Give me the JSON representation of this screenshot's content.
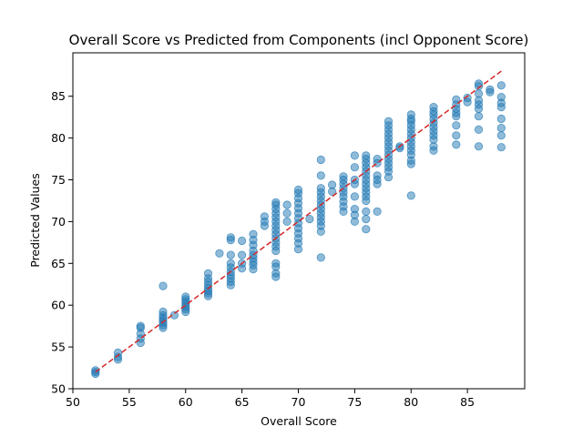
{
  "chart_data": {
    "type": "scatter",
    "title": "Overall Score vs Predicted from Components (incl Opponent Score)",
    "xlabel": "Overall Score",
    "ylabel": "Predicted Values",
    "xlim": [
      50,
      90
    ],
    "ylim": [
      50,
      90
    ],
    "xticks": [
      50,
      55,
      60,
      65,
      70,
      75,
      80,
      85
    ],
    "yticks": [
      50,
      55,
      60,
      65,
      70,
      75,
      80,
      85
    ],
    "grid": false,
    "point_color": "#1f77b4",
    "point_alpha": 0.5,
    "reference_line": {
      "style": "dashed",
      "color": "#d62728",
      "from": [
        52,
        52
      ],
      "to": [
        88,
        88
      ]
    },
    "points": [
      [
        52,
        51.8
      ],
      [
        52,
        52.0
      ],
      [
        52,
        52.2
      ],
      [
        54,
        53.5
      ],
      [
        54,
        53.8
      ],
      [
        54,
        54.3
      ],
      [
        56,
        55.5
      ],
      [
        56,
        56.0
      ],
      [
        56,
        56.6
      ],
      [
        56,
        57.3
      ],
      [
        56,
        57.5
      ],
      [
        58,
        57.3
      ],
      [
        58,
        57.6
      ],
      [
        58,
        57.9
      ],
      [
        58,
        58.2
      ],
      [
        58,
        58.5
      ],
      [
        58,
        58.8
      ],
      [
        58,
        59.2
      ],
      [
        58,
        62.3
      ],
      [
        59,
        58.8
      ],
      [
        60,
        59.2
      ],
      [
        60,
        59.5
      ],
      [
        60,
        59.8
      ],
      [
        60,
        60.1
      ],
      [
        60,
        60.4
      ],
      [
        60,
        60.7
      ],
      [
        60,
        61.0
      ],
      [
        62,
        61.1
      ],
      [
        62,
        61.4
      ],
      [
        62,
        61.7
      ],
      [
        62,
        62.0
      ],
      [
        62,
        62.4
      ],
      [
        62,
        62.8
      ],
      [
        62,
        63.2
      ],
      [
        62,
        63.8
      ],
      [
        63,
        66.2
      ],
      [
        64,
        62.4
      ],
      [
        64,
        62.8
      ],
      [
        64,
        63.2
      ],
      [
        64,
        63.6
      ],
      [
        64,
        64.0
      ],
      [
        64,
        64.5
      ],
      [
        64,
        65.0
      ],
      [
        64,
        66.0
      ],
      [
        64,
        67.8
      ],
      [
        64,
        68.1
      ],
      [
        65,
        64.4
      ],
      [
        65,
        65.0
      ],
      [
        65,
        66.0
      ],
      [
        65,
        67.7
      ],
      [
        66,
        64.3
      ],
      [
        66,
        64.8
      ],
      [
        66,
        65.2
      ],
      [
        66,
        65.6
      ],
      [
        66,
        66.0
      ],
      [
        66,
        66.5
      ],
      [
        66,
        67.2
      ],
      [
        66,
        67.8
      ],
      [
        66,
        68.5
      ],
      [
        67,
        69.5
      ],
      [
        67,
        70.0
      ],
      [
        67,
        70.6
      ],
      [
        68,
        63.4
      ],
      [
        68,
        63.8
      ],
      [
        68,
        64.6
      ],
      [
        68,
        65.0
      ],
      [
        68,
        66.5
      ],
      [
        68,
        67.0
      ],
      [
        68,
        67.5
      ],
      [
        68,
        68.0
      ],
      [
        68,
        68.5
      ],
      [
        68,
        69.0
      ],
      [
        68,
        69.5
      ],
      [
        68,
        70.0
      ],
      [
        68,
        70.5
      ],
      [
        68,
        71.0
      ],
      [
        68,
        71.5
      ],
      [
        68,
        72.0
      ],
      [
        68,
        72.3
      ],
      [
        69,
        70.0
      ],
      [
        69,
        71.0
      ],
      [
        69,
        72.0
      ],
      [
        70,
        66.7
      ],
      [
        70,
        67.4
      ],
      [
        70,
        68.0
      ],
      [
        70,
        68.6
      ],
      [
        70,
        69.2
      ],
      [
        70,
        69.8
      ],
      [
        70,
        70.4
      ],
      [
        70,
        71.0
      ],
      [
        70,
        71.6
      ],
      [
        70,
        72.2
      ],
      [
        70,
        72.8
      ],
      [
        70,
        73.4
      ],
      [
        70,
        73.8
      ],
      [
        71,
        70.3
      ],
      [
        72,
        65.7
      ],
      [
        72,
        68.8
      ],
      [
        72,
        69.5
      ],
      [
        72,
        70.0
      ],
      [
        72,
        70.5
      ],
      [
        72,
        71.0
      ],
      [
        72,
        71.5
      ],
      [
        72,
        72.0
      ],
      [
        72,
        72.5
      ],
      [
        72,
        73.0
      ],
      [
        72,
        73.5
      ],
      [
        72,
        74.0
      ],
      [
        72,
        75.5
      ],
      [
        72,
        77.4
      ],
      [
        73,
        73.6
      ],
      [
        73,
        74.4
      ],
      [
        74,
        71.2
      ],
      [
        74,
        71.8
      ],
      [
        74,
        72.4
      ],
      [
        74,
        73.0
      ],
      [
        74,
        73.5
      ],
      [
        74,
        74.0
      ],
      [
        74,
        74.5
      ],
      [
        74,
        75.0
      ],
      [
        74,
        75.4
      ],
      [
        75,
        70.0
      ],
      [
        75,
        70.8
      ],
      [
        75,
        71.5
      ],
      [
        75,
        73.0
      ],
      [
        75,
        74.5
      ],
      [
        75,
        75.0
      ],
      [
        75,
        76.5
      ],
      [
        75,
        77.9
      ],
      [
        76,
        69.1
      ],
      [
        76,
        70.3
      ],
      [
        76,
        71.2
      ],
      [
        76,
        72.5
      ],
      [
        76,
        73.0
      ],
      [
        76,
        73.5
      ],
      [
        76,
        74.0
      ],
      [
        76,
        74.5
      ],
      [
        76,
        75.0
      ],
      [
        76,
        75.5
      ],
      [
        76,
        76.0
      ],
      [
        76,
        76.5
      ],
      [
        76,
        77.0
      ],
      [
        76,
        77.5
      ],
      [
        76,
        77.9
      ],
      [
        77,
        71.2
      ],
      [
        77,
        74.5
      ],
      [
        77,
        75.0
      ],
      [
        77,
        75.5
      ],
      [
        77,
        77.0
      ],
      [
        77,
        77.5
      ],
      [
        78,
        75.3
      ],
      [
        78,
        76.0
      ],
      [
        78,
        76.5
      ],
      [
        78,
        77.0
      ],
      [
        78,
        77.5
      ],
      [
        78,
        78.0
      ],
      [
        78,
        78.5
      ],
      [
        78,
        79.0
      ],
      [
        78,
        79.5
      ],
      [
        78,
        80.0
      ],
      [
        78,
        80.5
      ],
      [
        78,
        81.0
      ],
      [
        78,
        81.5
      ],
      [
        78,
        82.0
      ],
      [
        79,
        78.8
      ],
      [
        79,
        79.0
      ],
      [
        80,
        73.1
      ],
      [
        80,
        76.9
      ],
      [
        80,
        77.3
      ],
      [
        80,
        78.0
      ],
      [
        80,
        78.5
      ],
      [
        80,
        79.0
      ],
      [
        80,
        79.5
      ],
      [
        80,
        80.0
      ],
      [
        80,
        80.5
      ],
      [
        80,
        81.0
      ],
      [
        80,
        81.5
      ],
      [
        80,
        82.0
      ],
      [
        80,
        82.3
      ],
      [
        80,
        82.8
      ],
      [
        82,
        78.5
      ],
      [
        82,
        79.0
      ],
      [
        82,
        79.8
      ],
      [
        82,
        80.3
      ],
      [
        82,
        80.8
      ],
      [
        82,
        81.3
      ],
      [
        82,
        81.8
      ],
      [
        82,
        82.3
      ],
      [
        82,
        82.8
      ],
      [
        82,
        83.2
      ],
      [
        82,
        83.7
      ],
      [
        84,
        79.2
      ],
      [
        84,
        80.3
      ],
      [
        84,
        81.5
      ],
      [
        84,
        82.6
      ],
      [
        84,
        83.0
      ],
      [
        84,
        83.5
      ],
      [
        84,
        84.0
      ],
      [
        84,
        84.6
      ],
      [
        85,
        84.3
      ],
      [
        85,
        84.8
      ],
      [
        86,
        79.0
      ],
      [
        86,
        81.0
      ],
      [
        86,
        82.6
      ],
      [
        86,
        83.5
      ],
      [
        86,
        84.0
      ],
      [
        86,
        84.5
      ],
      [
        86,
        85.3
      ],
      [
        86,
        86.2
      ],
      [
        86,
        86.5
      ],
      [
        87,
        85.5
      ],
      [
        87,
        85.8
      ],
      [
        88,
        78.9
      ],
      [
        88,
        80.3
      ],
      [
        88,
        81.2
      ],
      [
        88,
        82.3
      ],
      [
        88,
        83.7
      ],
      [
        88,
        84.2
      ],
      [
        88,
        84.9
      ],
      [
        88,
        86.3
      ]
    ]
  }
}
